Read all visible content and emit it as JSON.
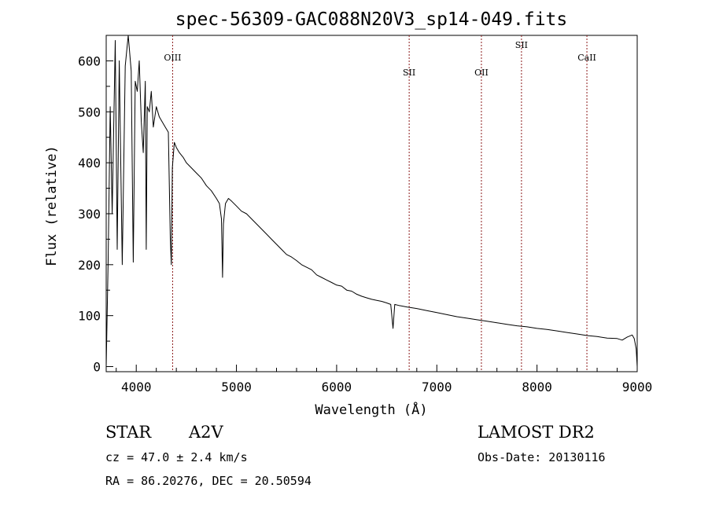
{
  "chart_data": {
    "type": "line",
    "title": "spec-56309-GAC088N20V3_sp14-049.fits",
    "xlabel": "Wavelength (Å)",
    "ylabel": "Flux (relative)",
    "xlim": [
      3700,
      9000
    ],
    "ylim": [
      -10,
      650
    ],
    "x_ticks": [
      4000,
      5000,
      6000,
      7000,
      8000,
      9000
    ],
    "y_ticks": [
      0,
      100,
      200,
      300,
      400,
      500,
      600
    ],
    "grid": false,
    "line_color": "#000000",
    "marker_color": "#8b1a1a",
    "lines": [
      {
        "label": "OIII",
        "x": 4363
      },
      {
        "label": "SII",
        "x": 6724
      },
      {
        "label": "OII",
        "x": 7445
      },
      {
        "label": "SII",
        "x": 7845
      },
      {
        "label": "CaII",
        "x": 8498
      }
    ],
    "series": [
      {
        "x": [
          3700,
          3720,
          3740,
          3760,
          3790,
          3810,
          3830,
          3860,
          3890,
          3920,
          3950,
          3970,
          3990,
          4010,
          4030,
          4050,
          4070,
          4090,
          4100,
          4110,
          4130,
          4150,
          4170,
          4200,
          4230,
          4260,
          4290,
          4320,
          4340,
          4350,
          4360,
          4380,
          4400,
          4430,
          4470,
          4500,
          4550,
          4600,
          4650,
          4700,
          4750,
          4800,
          4830,
          4850,
          4861,
          4870,
          4890,
          4920,
          4950,
          5000,
          5050,
          5100,
          5150,
          5200,
          5250,
          5300,
          5350,
          5400,
          5450,
          5500,
          5550,
          5600,
          5650,
          5700,
          5750,
          5800,
          5850,
          5900,
          5950,
          6000,
          6050,
          6100,
          6150,
          6200,
          6250,
          6300,
          6350,
          6400,
          6450,
          6500,
          6540,
          6563,
          6580,
          6620,
          6700,
          6800,
          6900,
          7000,
          7100,
          7200,
          7300,
          7400,
          7500,
          7600,
          7700,
          7800,
          7900,
          8000,
          8100,
          8200,
          8300,
          8400,
          8500,
          8600,
          8700,
          8800,
          8850,
          8900,
          8950,
          8970,
          8990,
          9000
        ],
        "values": [
          0,
          210,
          510,
          300,
          640,
          230,
          600,
          200,
          590,
          650,
          580,
          205,
          560,
          540,
          600,
          480,
          420,
          560,
          230,
          510,
          500,
          540,
          470,
          510,
          490,
          480,
          470,
          460,
          250,
          200,
          390,
          440,
          430,
          420,
          410,
          400,
          390,
          380,
          370,
          355,
          345,
          330,
          320,
          290,
          175,
          280,
          320,
          330,
          325,
          315,
          305,
          300,
          290,
          280,
          270,
          260,
          250,
          240,
          230,
          220,
          215,
          208,
          200,
          195,
          190,
          180,
          175,
          170,
          165,
          160,
          158,
          150,
          148,
          142,
          138,
          135,
          132,
          130,
          128,
          125,
          122,
          75,
          122,
          120,
          117,
          114,
          110,
          106,
          102,
          98,
          95,
          92,
          89,
          86,
          83,
          80,
          78,
          75,
          73,
          70,
          67,
          64,
          61,
          59,
          56,
          55,
          52,
          58,
          62,
          55,
          35,
          0
        ]
      }
    ]
  },
  "annotations": {
    "object_class": "STAR",
    "subclass": "A2V",
    "survey": "LAMOST DR2",
    "redshift": "cz = 47.0 ± 2.4 km/s",
    "obs_date": "Obs-Date: 20130116",
    "coordinates": "RA =  86.20276, DEC =  20.50594"
  }
}
